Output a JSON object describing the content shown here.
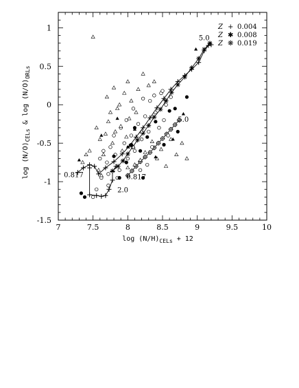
{
  "chart_data": {
    "type": "scatter",
    "xlabel_main": "log (N/H)",
    "xlabel_sub": "CELs",
    "xlabel_tail": " + 12",
    "ylabel_a": "log (N/O)",
    "ylabel_a_sub": "CELs",
    "ylabel_mid": " & log (N/O)",
    "ylabel_b_sub": "ORLs",
    "xlim": [
      7,
      10
    ],
    "ylim": [
      -1.5,
      1.2
    ],
    "xticks": [
      "7",
      "7.5",
      "8",
      "8.5",
      "9",
      "9.5",
      "10"
    ],
    "yticks": [
      "-1.5",
      "-1",
      "-0.5",
      "0",
      "0.5",
      "1"
    ],
    "legend": {
      "placement": "top-right",
      "entries": [
        {
          "z": "Z",
          "symbol": "+",
          "value": "0.004"
        },
        {
          "z": "Z",
          "symbol": "✱",
          "value": "0.008"
        },
        {
          "z": "Z",
          "symbol": "❋",
          "value": "0.019"
        }
      ]
    },
    "annotations": [
      {
        "text": "5.0",
        "x": 9.02,
        "y": 0.84
      },
      {
        "text": "5.0",
        "x": 8.72,
        "y": -0.22
      },
      {
        "text": "0.817",
        "x": 7.08,
        "y": -0.94
      },
      {
        "text": "0.817",
        "x": 7.98,
        "y": -0.97
      },
      {
        "text": "2.0",
        "x": 7.85,
        "y": -1.14
      }
    ],
    "series": [
      {
        "marker": "line-plus",
        "points": [
          [
            7.28,
            -0.88
          ],
          [
            7.36,
            -0.82
          ],
          [
            7.45,
            -0.78
          ],
          [
            7.52,
            -0.8
          ],
          [
            7.58,
            -0.9
          ],
          [
            7.68,
            -0.82
          ],
          [
            7.8,
            -0.74
          ],
          [
            7.92,
            -0.64
          ],
          [
            8.02,
            -0.54
          ],
          [
            8.12,
            -0.42
          ],
          [
            8.22,
            -0.3
          ],
          [
            8.32,
            -0.17
          ],
          [
            8.42,
            -0.04
          ],
          [
            8.52,
            0.08
          ],
          [
            8.62,
            0.2
          ],
          [
            8.72,
            0.3
          ],
          [
            8.82,
            0.38
          ],
          [
            8.92,
            0.46
          ],
          [
            9.02,
            0.55
          ],
          [
            9.1,
            0.7
          ],
          [
            9.16,
            0.77
          ],
          [
            9.2,
            0.78
          ]
        ]
      },
      {
        "marker": "line-plus",
        "points": [
          [
            7.45,
            -0.82
          ],
          [
            7.45,
            -1.17
          ],
          [
            7.55,
            -1.18
          ],
          [
            7.62,
            -1.19
          ],
          [
            7.68,
            -1.18
          ],
          [
            7.73,
            -1.1
          ],
          [
            7.78,
            -0.98
          ],
          [
            7.78,
            -0.87
          ],
          [
            7.83,
            -0.8
          ]
        ]
      },
      {
        "marker": "line-star",
        "points": [
          [
            7.78,
            -0.86
          ],
          [
            7.86,
            -0.8
          ],
          [
            7.93,
            -0.73
          ],
          [
            8.0,
            -0.64
          ],
          [
            8.07,
            -0.55
          ],
          [
            8.14,
            -0.46
          ],
          [
            8.22,
            -0.37
          ],
          [
            8.3,
            -0.27
          ],
          [
            8.38,
            -0.16
          ],
          [
            8.47,
            -0.06
          ],
          [
            8.55,
            0.05
          ],
          [
            8.63,
            0.16
          ],
          [
            8.72,
            0.26
          ],
          [
            8.82,
            0.36
          ],
          [
            8.92,
            0.48
          ],
          [
            9.02,
            0.6
          ],
          [
            9.1,
            0.72
          ],
          [
            9.18,
            0.8
          ]
        ]
      },
      {
        "marker": "line-flower",
        "points": [
          [
            8.0,
            -0.92
          ],
          [
            8.06,
            -0.86
          ],
          [
            8.12,
            -0.8
          ],
          [
            8.18,
            -0.74
          ],
          [
            8.25,
            -0.68
          ],
          [
            8.32,
            -0.62
          ],
          [
            8.38,
            -0.56
          ],
          [
            8.44,
            -0.5
          ],
          [
            8.5,
            -0.44
          ],
          [
            8.56,
            -0.38
          ],
          [
            8.62,
            -0.32
          ],
          [
            8.68,
            -0.26
          ],
          [
            8.74,
            -0.2
          ]
        ]
      },
      {
        "marker": "open-circle",
        "points": [
          [
            7.55,
            -1.1
          ],
          [
            7.6,
            -0.7
          ],
          [
            7.65,
            -0.6
          ],
          [
            7.7,
            -0.75
          ],
          [
            7.75,
            -0.55
          ],
          [
            7.8,
            -0.4
          ],
          [
            7.82,
            -0.65
          ],
          [
            7.88,
            -0.85
          ],
          [
            7.9,
            -0.3
          ],
          [
            7.95,
            -0.5
          ],
          [
            7.98,
            -0.2
          ],
          [
            8.0,
            -0.7
          ],
          [
            8.05,
            -0.4
          ],
          [
            8.08,
            -0.05
          ],
          [
            8.1,
            -0.6
          ],
          [
            8.15,
            -0.25
          ],
          [
            8.2,
            -0.45
          ],
          [
            8.22,
            0.08
          ],
          [
            8.25,
            -0.15
          ],
          [
            8.3,
            -0.35
          ],
          [
            8.32,
            0.05
          ],
          [
            8.35,
            -0.55
          ],
          [
            8.38,
            0.12
          ],
          [
            8.4,
            -0.1
          ],
          [
            8.45,
            -0.3
          ],
          [
            8.48,
            0.15
          ],
          [
            8.5,
            0.18
          ],
          [
            8.52,
            -0.2
          ],
          [
            8.55,
            0.0
          ],
          [
            8.58,
            -0.4
          ],
          [
            8.62,
            0.1
          ],
          [
            7.5,
            -1.2
          ],
          [
            7.62,
            -0.95
          ],
          [
            7.72,
            -1.05
          ],
          [
            7.85,
            -0.95
          ],
          [
            8.18,
            -0.85
          ],
          [
            8.28,
            -0.78
          ],
          [
            7.72,
            -0.9
          ]
        ]
      },
      {
        "marker": "filled-circle",
        "points": [
          [
            7.33,
            -1.15
          ],
          [
            7.38,
            -1.2
          ],
          [
            7.88,
            -0.95
          ],
          [
            7.98,
            -0.75
          ],
          [
            8.05,
            -0.52
          ],
          [
            8.1,
            -0.3
          ],
          [
            8.18,
            -0.6
          ],
          [
            8.28,
            -0.42
          ],
          [
            8.4,
            -0.22
          ],
          [
            8.52,
            -0.52
          ],
          [
            8.6,
            -0.08
          ],
          [
            8.68,
            -0.05
          ],
          [
            8.72,
            -0.35
          ],
          [
            8.85,
            0.1
          ],
          [
            7.8,
            -0.67
          ],
          [
            8.22,
            -0.95
          ]
        ]
      },
      {
        "marker": "open-triangle",
        "points": [
          [
            7.5,
            0.88
          ],
          [
            7.55,
            -0.3
          ],
          [
            7.6,
            -0.45
          ],
          [
            7.65,
            -0.65
          ],
          [
            7.68,
            -0.38
          ],
          [
            7.7,
            0.1
          ],
          [
            7.72,
            -0.22
          ],
          [
            7.75,
            -0.1
          ],
          [
            7.78,
            -0.5
          ],
          [
            7.8,
            0.22
          ],
          [
            7.82,
            -0.35
          ],
          [
            7.85,
            -0.05
          ],
          [
            7.88,
            0.0
          ],
          [
            7.9,
            -0.28
          ],
          [
            7.92,
            -0.6
          ],
          [
            7.95,
            0.15
          ],
          [
            7.98,
            -0.42
          ],
          [
            8.0,
            0.3
          ],
          [
            8.02,
            -0.18
          ],
          [
            8.05,
            0.05
          ],
          [
            8.08,
            -0.55
          ],
          [
            8.12,
            -0.1
          ],
          [
            8.15,
            0.2
          ],
          [
            8.2,
            -0.35
          ],
          [
            8.25,
            -0.62
          ],
          [
            8.3,
            0.25
          ],
          [
            8.35,
            -0.48
          ],
          [
            8.42,
            -0.7
          ],
          [
            8.48,
            -0.58
          ],
          [
            8.55,
            -0.8
          ],
          [
            8.62,
            -0.45
          ],
          [
            8.7,
            -0.65
          ],
          [
            8.78,
            -0.5
          ],
          [
            8.85,
            -0.7
          ],
          [
            7.35,
            -0.75
          ],
          [
            7.4,
            -0.65
          ],
          [
            7.45,
            -0.6
          ],
          [
            7.58,
            -0.85
          ],
          [
            7.62,
            -0.92
          ],
          [
            8.0,
            -0.82
          ],
          [
            8.1,
            -0.78
          ],
          [
            8.18,
            -0.72
          ],
          [
            8.22,
            0.4
          ],
          [
            8.38,
            0.3
          ]
        ]
      },
      {
        "marker": "filled-triangle",
        "points": [
          [
            7.3,
            -0.72
          ],
          [
            7.62,
            -0.4
          ],
          [
            7.85,
            -0.18
          ],
          [
            8.0,
            -0.55
          ],
          [
            8.1,
            -0.32
          ],
          [
            8.4,
            -0.68
          ],
          [
            8.65,
            -0.45
          ],
          [
            8.8,
            -0.12
          ],
          [
            8.98,
            0.72
          ]
        ]
      }
    ]
  }
}
